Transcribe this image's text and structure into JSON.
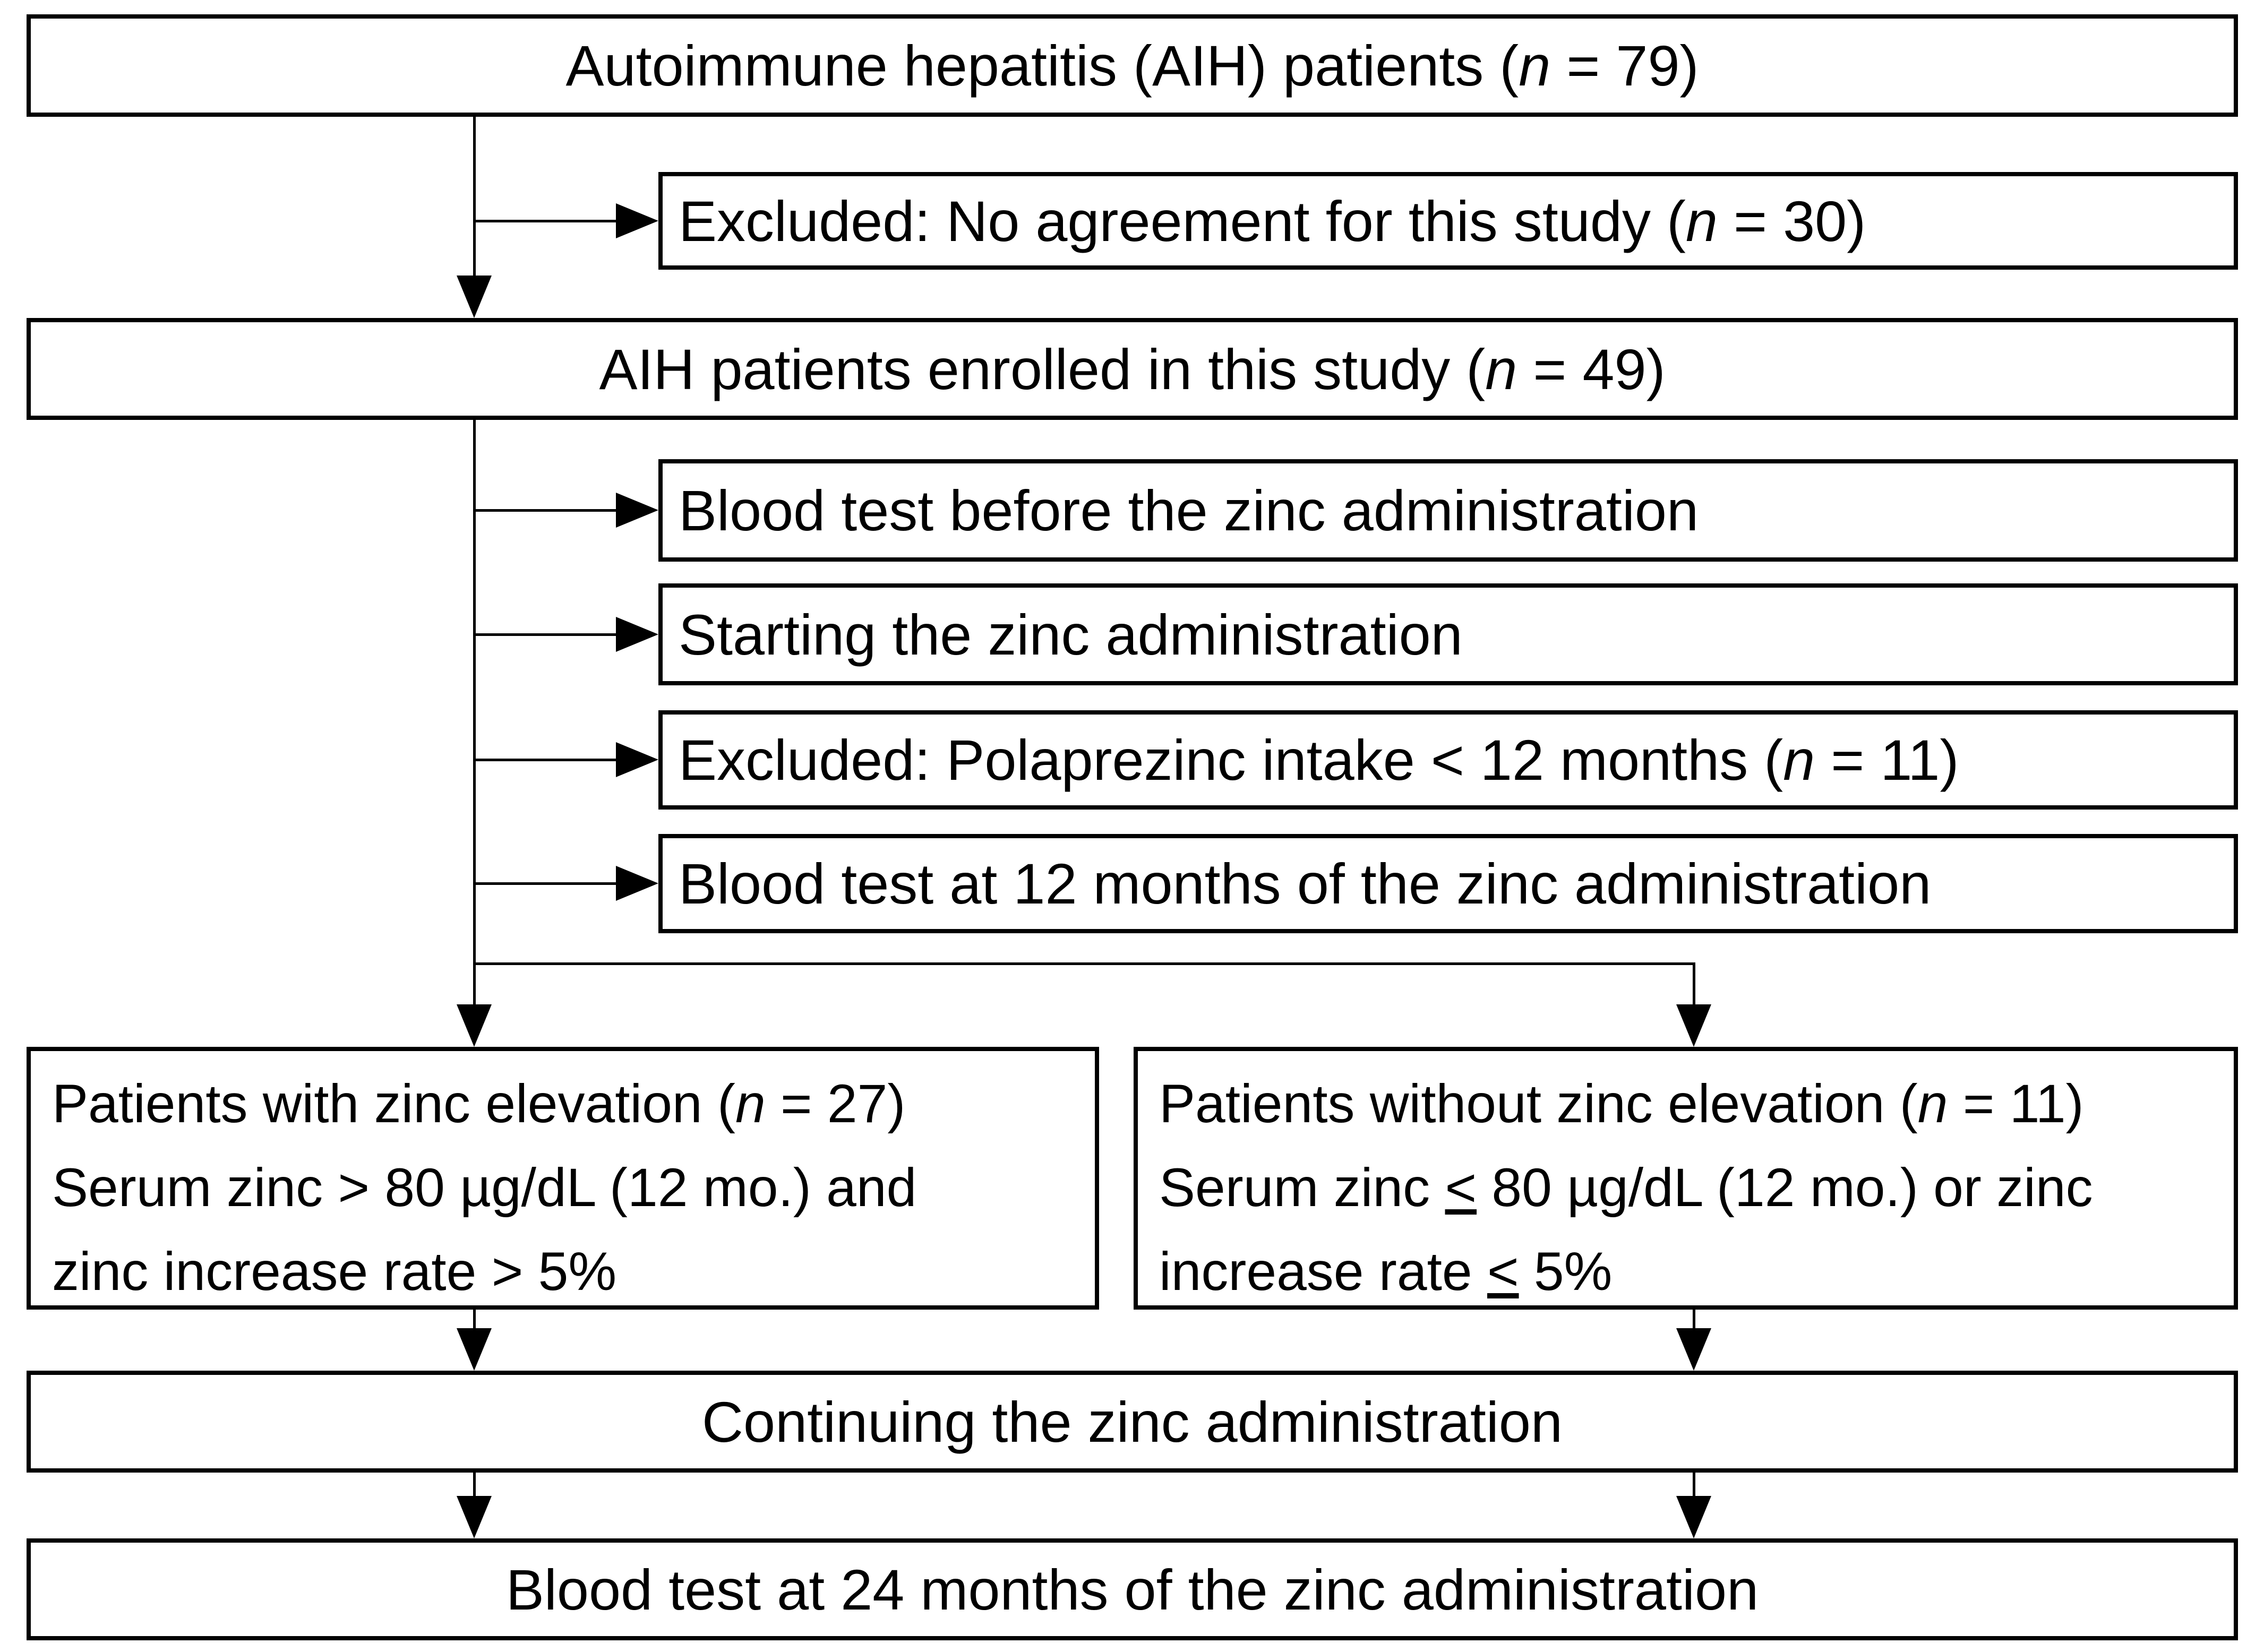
{
  "colors": {
    "background": "#ffffff",
    "line": "#000000",
    "text": "#000000"
  },
  "boxes": {
    "aih_total": {
      "lines": [
        [
          {
            "t": "Autoimmune hepatitis (AIH) patients ("
          },
          {
            "t": "n",
            "i": true
          },
          {
            "t": " = 79)"
          }
        ]
      ]
    },
    "excluded_no_agreement": {
      "lines": [
        [
          {
            "t": "Excluded: No agreement for this study ("
          },
          {
            "t": "n",
            "i": true
          },
          {
            "t": " = 30)"
          }
        ]
      ]
    },
    "enrolled": {
      "lines": [
        [
          {
            "t": "AIH patients enrolled in this study ("
          },
          {
            "t": "n",
            "i": true
          },
          {
            "t": " = 49)"
          }
        ]
      ]
    },
    "blood_test_before": {
      "lines": [
        [
          {
            "t": "Blood test before the zinc administration"
          }
        ]
      ]
    },
    "starting_zinc": {
      "lines": [
        [
          {
            "t": "Starting the zinc administration"
          }
        ]
      ]
    },
    "excluded_polaprezinc": {
      "lines": [
        [
          {
            "t": "Excluded: Polaprezinc intake < 12 months ("
          },
          {
            "t": "n",
            "i": true
          },
          {
            "t": " = 11)"
          }
        ]
      ]
    },
    "blood_test_12": {
      "lines": [
        [
          {
            "t": "Blood test at 12 months of the zinc administration"
          }
        ]
      ]
    },
    "with_elevation": {
      "lines": [
        [
          {
            "t": "Patients with zinc elevation ("
          },
          {
            "t": "n",
            "i": true
          },
          {
            "t": " = 27)"
          }
        ],
        [
          {
            "t": "Serum zinc > 80 µg/dL (12 mo.) and"
          }
        ],
        [
          {
            "t": "zinc increase rate > 5%"
          }
        ]
      ]
    },
    "without_elevation": {
      "lines": [
        [
          {
            "t": "Patients without zinc elevation ("
          },
          {
            "t": "n",
            "i": true
          },
          {
            "t": " = 11)"
          }
        ],
        [
          {
            "t": "Serum zinc "
          },
          {
            "t": "<",
            "u": true
          },
          {
            "t": " 80 µg/dL (12 mo.) or zinc"
          }
        ],
        [
          {
            "t": "increase rate "
          },
          {
            "t": "<",
            "u": true
          },
          {
            "t": " 5%"
          }
        ]
      ]
    },
    "continuing": {
      "lines": [
        [
          {
            "t": "Continuing the zinc administration"
          }
        ]
      ]
    },
    "blood_test_24": {
      "lines": [
        [
          {
            "t": "Blood test at 24 months of the zinc administration"
          }
        ]
      ]
    }
  },
  "edges": [
    {
      "from": "aih_total",
      "to": "excluded_no_agreement"
    },
    {
      "from": "aih_total",
      "to": "enrolled"
    },
    {
      "from": "enrolled",
      "to": "blood_test_before"
    },
    {
      "from": "enrolled",
      "to": "starting_zinc"
    },
    {
      "from": "enrolled",
      "to": "excluded_polaprezinc"
    },
    {
      "from": "enrolled",
      "to": "blood_test_12"
    },
    {
      "from": "enrolled",
      "to": "with_elevation"
    },
    {
      "from": "enrolled",
      "to": "without_elevation"
    },
    {
      "from": "with_elevation",
      "to": "continuing"
    },
    {
      "from": "without_elevation",
      "to": "continuing"
    },
    {
      "from": "continuing",
      "to": "blood_test_24"
    }
  ]
}
